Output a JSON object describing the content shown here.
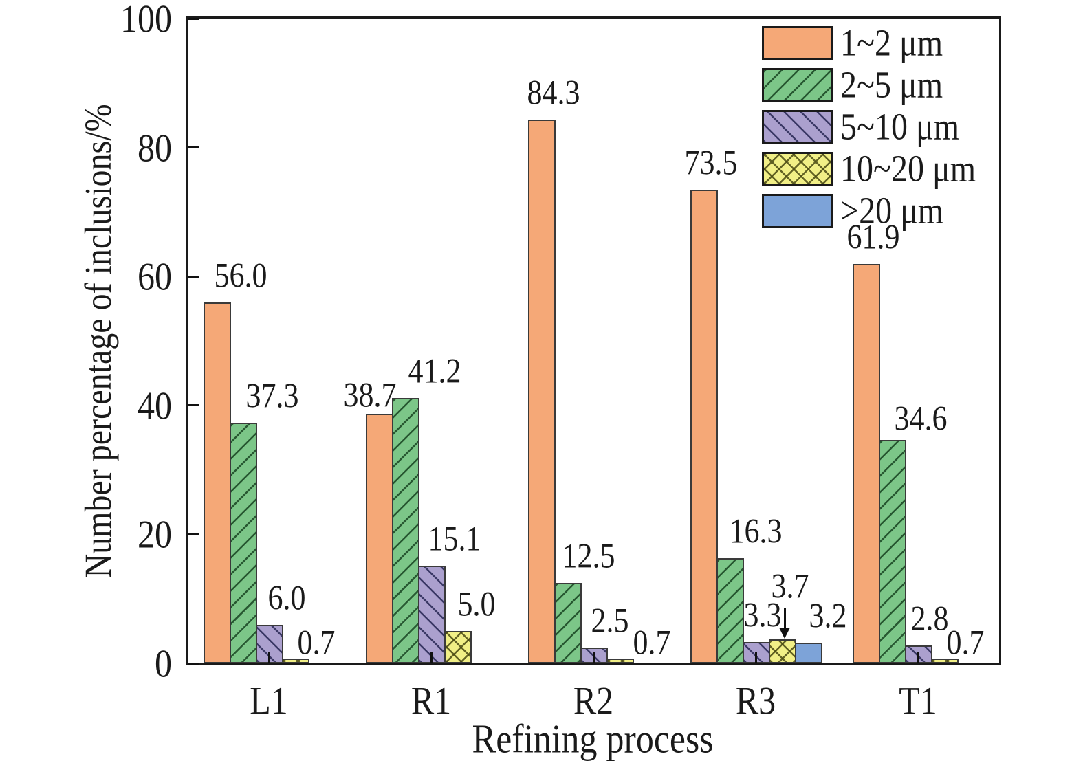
{
  "chart_data": {
    "type": "bar",
    "title": "",
    "xlabel": "Refining process",
    "ylabel": "Number percentage of inclusions/%",
    "ylim": [
      0,
      100
    ],
    "yticks": [
      0,
      20,
      40,
      60,
      80,
      100
    ],
    "categories": [
      "L1",
      "R1",
      "R2",
      "R3",
      "T1"
    ],
    "series": [
      {
        "name": "1~2 μm",
        "color": "#F5A877",
        "hatch": "none",
        "values": [
          56.0,
          38.7,
          84.3,
          73.5,
          61.9
        ]
      },
      {
        "name": "2~5 μm",
        "color": "#7CC688",
        "hatch": "forward",
        "values": [
          37.3,
          41.2,
          12.5,
          16.3,
          34.6
        ]
      },
      {
        "name": "5~10 μm",
        "color": "#ABA0CE",
        "hatch": "backward",
        "values": [
          6.0,
          15.1,
          2.5,
          3.3,
          2.8
        ]
      },
      {
        "name": "10~20 μm",
        "color": "#F1EF86",
        "hatch": "cross",
        "values": [
          0.7,
          5.0,
          0.7,
          3.7,
          0.7
        ]
      },
      {
        "name": ">20 μm",
        "color": "#7DA3D8",
        "hatch": "none",
        "values": [
          null,
          null,
          null,
          3.2,
          null
        ]
      }
    ],
    "value_labels": true,
    "grid": false,
    "legend_position": "top-right",
    "frame_color": "#1a1a1a",
    "annotations": [
      {
        "type": "down-arrow",
        "category": "R3",
        "series": "10~20 μm",
        "text": "3.7"
      }
    ]
  }
}
